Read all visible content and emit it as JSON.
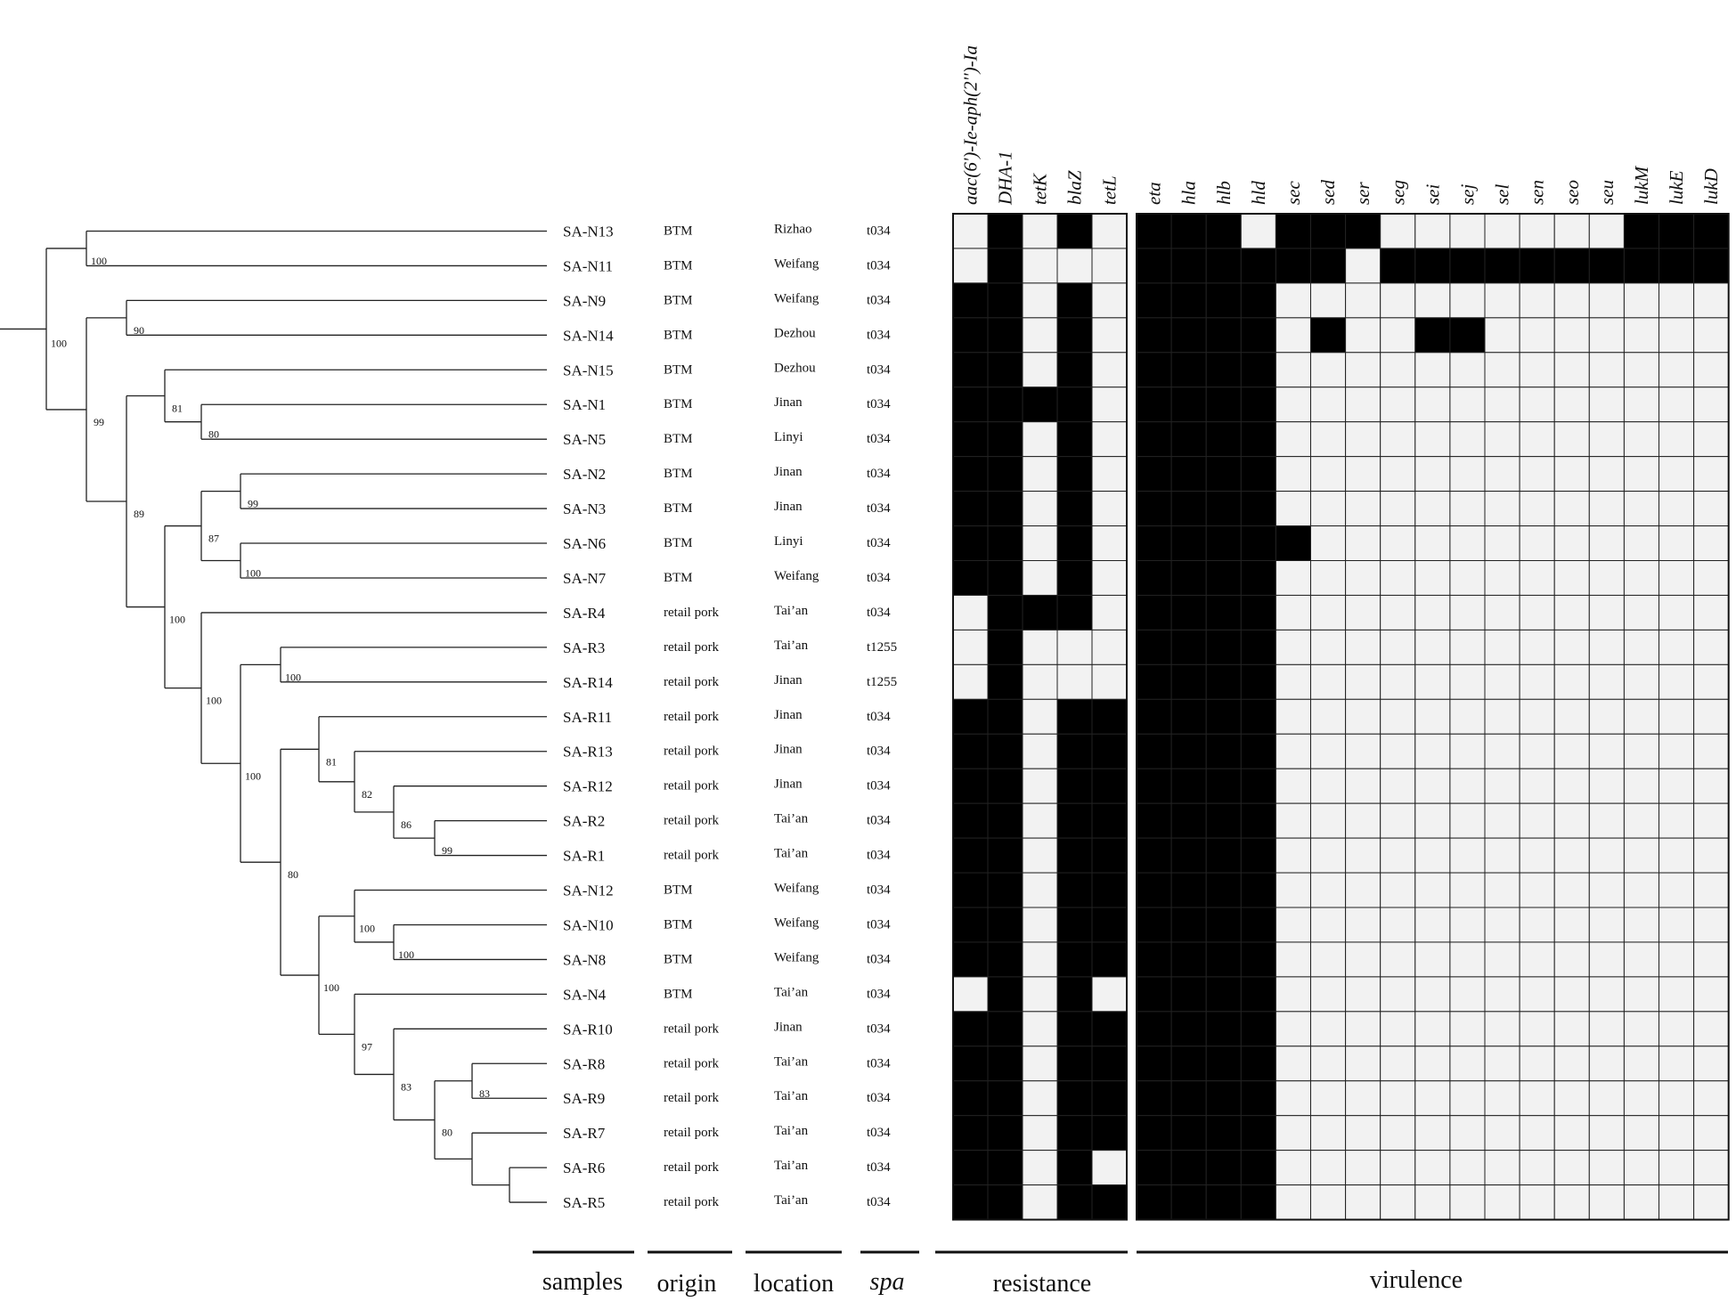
{
  "samples": [
    {
      "id": "SA-N13",
      "origin": "BTM",
      "location": "Rizhao",
      "spa": "t034"
    },
    {
      "id": "SA-N11",
      "origin": "BTM",
      "location": "Weifang",
      "spa": "t034"
    },
    {
      "id": "SA-N9",
      "origin": "BTM",
      "location": "Weifang",
      "spa": "t034"
    },
    {
      "id": "SA-N14",
      "origin": "BTM",
      "location": "Dezhou",
      "spa": "t034"
    },
    {
      "id": "SA-N15",
      "origin": "BTM",
      "location": "Dezhou",
      "spa": "t034"
    },
    {
      "id": "SA-N1",
      "origin": "BTM",
      "location": "Jinan",
      "spa": "t034"
    },
    {
      "id": "SA-N5",
      "origin": "BTM",
      "location": "Linyi",
      "spa": "t034"
    },
    {
      "id": "SA-N2",
      "origin": "BTM",
      "location": "Jinan",
      "spa": "t034"
    },
    {
      "id": "SA-N3",
      "origin": "BTM",
      "location": "Jinan",
      "spa": "t034"
    },
    {
      "id": "SA-N6",
      "origin": "BTM",
      "location": "Linyi",
      "spa": "t034"
    },
    {
      "id": "SA-N7",
      "origin": "BTM",
      "location": "Weifang",
      "spa": "t034"
    },
    {
      "id": "SA-R4",
      "origin": "retail pork",
      "location": "Tai’an",
      "spa": "t034"
    },
    {
      "id": "SA-R3",
      "origin": "retail pork",
      "location": "Tai’an",
      "spa": "t1255"
    },
    {
      "id": "SA-R14",
      "origin": "retail pork",
      "location": "Jinan",
      "spa": "t1255"
    },
    {
      "id": "SA-R11",
      "origin": "retail pork",
      "location": "Jinan",
      "spa": "t034"
    },
    {
      "id": "SA-R13",
      "origin": "retail pork",
      "location": "Jinan",
      "spa": "t034"
    },
    {
      "id": "SA-R12",
      "origin": "retail pork",
      "location": "Jinan",
      "spa": "t034"
    },
    {
      "id": "SA-R2",
      "origin": "retail pork",
      "location": "Tai’an",
      "spa": "t034"
    },
    {
      "id": "SA-R1",
      "origin": "retail pork",
      "location": "Tai’an",
      "spa": "t034"
    },
    {
      "id": "SA-N12",
      "origin": "BTM",
      "location": "Weifang",
      "spa": "t034"
    },
    {
      "id": "SA-N10",
      "origin": "BTM",
      "location": "Weifang",
      "spa": "t034"
    },
    {
      "id": "SA-N8",
      "origin": "BTM",
      "location": "Weifang",
      "spa": "t034"
    },
    {
      "id": "SA-N4",
      "origin": "BTM",
      "location": "Tai’an",
      "spa": "t034"
    },
    {
      "id": "SA-R10",
      "origin": "retail pork",
      "location": "Jinan",
      "spa": "t034"
    },
    {
      "id": "SA-R8",
      "origin": "retail pork",
      "location": "Tai’an",
      "spa": "t034"
    },
    {
      "id": "SA-R9",
      "origin": "retail pork",
      "location": "Tai’an",
      "spa": "t034"
    },
    {
      "id": "SA-R7",
      "origin": "retail pork",
      "location": "Tai’an",
      "spa": "t034"
    },
    {
      "id": "SA-R6",
      "origin": "retail pork",
      "location": "Tai’an",
      "spa": "t034"
    },
    {
      "id": "SA-R5",
      "origin": "retail pork",
      "location": "Tai’an",
      "spa": "t034"
    }
  ],
  "resistance_genes": [
    "aac(6')-Ie-aph(2'')-Ia",
    "DHA-1",
    "tetK",
    "blaZ",
    "tetL"
  ],
  "virulence_genes": [
    "eta",
    "hla",
    "hlb",
    "hld",
    "sec",
    "sed",
    "ser",
    "seg",
    "sei",
    "sej",
    "sel",
    "sen",
    "seo",
    "seu",
    "lukM",
    "lukE",
    "lukD"
  ],
  "resistance_matrix": [
    [
      0,
      1,
      0,
      1,
      0
    ],
    [
      0,
      1,
      0,
      0,
      0
    ],
    [
      1,
      1,
      0,
      1,
      0
    ],
    [
      1,
      1,
      0,
      1,
      0
    ],
    [
      1,
      1,
      0,
      1,
      0
    ],
    [
      1,
      1,
      1,
      1,
      0
    ],
    [
      1,
      1,
      0,
      1,
      0
    ],
    [
      1,
      1,
      0,
      1,
      0
    ],
    [
      1,
      1,
      0,
      1,
      0
    ],
    [
      1,
      1,
      0,
      1,
      0
    ],
    [
      1,
      1,
      0,
      1,
      0
    ],
    [
      0,
      1,
      1,
      1,
      0
    ],
    [
      0,
      1,
      0,
      0,
      0
    ],
    [
      0,
      1,
      0,
      0,
      0
    ],
    [
      1,
      1,
      0,
      1,
      1
    ],
    [
      1,
      1,
      0,
      1,
      1
    ],
    [
      1,
      1,
      0,
      1,
      1
    ],
    [
      1,
      1,
      0,
      1,
      1
    ],
    [
      1,
      1,
      0,
      1,
      1
    ],
    [
      1,
      1,
      0,
      1,
      1
    ],
    [
      1,
      1,
      0,
      1,
      1
    ],
    [
      1,
      1,
      0,
      1,
      1
    ],
    [
      0,
      1,
      0,
      1,
      0
    ],
    [
      1,
      1,
      0,
      1,
      1
    ],
    [
      1,
      1,
      0,
      1,
      1
    ],
    [
      1,
      1,
      0,
      1,
      1
    ],
    [
      1,
      1,
      0,
      1,
      1
    ],
    [
      1,
      1,
      0,
      1,
      0
    ],
    [
      1,
      1,
      0,
      1,
      1
    ]
  ],
  "virulence_matrix": [
    [
      1,
      1,
      1,
      0,
      1,
      1,
      1,
      0,
      0,
      0,
      0,
      0,
      0,
      0,
      1,
      1,
      1
    ],
    [
      1,
      1,
      1,
      1,
      1,
      1,
      0,
      1,
      1,
      1,
      1,
      1,
      1,
      1,
      1,
      1,
      1
    ],
    [
      1,
      1,
      1,
      1,
      0,
      0,
      0,
      0,
      0,
      0,
      0,
      0,
      0,
      0,
      0,
      0,
      0
    ],
    [
      1,
      1,
      1,
      1,
      0,
      1,
      0,
      0,
      1,
      1,
      0,
      0,
      0,
      0,
      0,
      0,
      0
    ],
    [
      1,
      1,
      1,
      1,
      0,
      0,
      0,
      0,
      0,
      0,
      0,
      0,
      0,
      0,
      0,
      0,
      0
    ],
    [
      1,
      1,
      1,
      1,
      0,
      0,
      0,
      0,
      0,
      0,
      0,
      0,
      0,
      0,
      0,
      0,
      0
    ],
    [
      1,
      1,
      1,
      1,
      0,
      0,
      0,
      0,
      0,
      0,
      0,
      0,
      0,
      0,
      0,
      0,
      0
    ],
    [
      1,
      1,
      1,
      1,
      0,
      0,
      0,
      0,
      0,
      0,
      0,
      0,
      0,
      0,
      0,
      0,
      0
    ],
    [
      1,
      1,
      1,
      1,
      0,
      0,
      0,
      0,
      0,
      0,
      0,
      0,
      0,
      0,
      0,
      0,
      0
    ],
    [
      1,
      1,
      1,
      1,
      1,
      0,
      0,
      0,
      0,
      0,
      0,
      0,
      0,
      0,
      0,
      0,
      0
    ],
    [
      1,
      1,
      1,
      1,
      0,
      0,
      0,
      0,
      0,
      0,
      0,
      0,
      0,
      0,
      0,
      0,
      0
    ],
    [
      1,
      1,
      1,
      1,
      0,
      0,
      0,
      0,
      0,
      0,
      0,
      0,
      0,
      0,
      0,
      0,
      0
    ],
    [
      1,
      1,
      1,
      1,
      0,
      0,
      0,
      0,
      0,
      0,
      0,
      0,
      0,
      0,
      0,
      0,
      0
    ],
    [
      1,
      1,
      1,
      1,
      0,
      0,
      0,
      0,
      0,
      0,
      0,
      0,
      0,
      0,
      0,
      0,
      0
    ],
    [
      1,
      1,
      1,
      1,
      0,
      0,
      0,
      0,
      0,
      0,
      0,
      0,
      0,
      0,
      0,
      0,
      0
    ],
    [
      1,
      1,
      1,
      1,
      0,
      0,
      0,
      0,
      0,
      0,
      0,
      0,
      0,
      0,
      0,
      0,
      0
    ],
    [
      1,
      1,
      1,
      1,
      0,
      0,
      0,
      0,
      0,
      0,
      0,
      0,
      0,
      0,
      0,
      0,
      0
    ],
    [
      1,
      1,
      1,
      1,
      0,
      0,
      0,
      0,
      0,
      0,
      0,
      0,
      0,
      0,
      0,
      0,
      0
    ],
    [
      1,
      1,
      1,
      1,
      0,
      0,
      0,
      0,
      0,
      0,
      0,
      0,
      0,
      0,
      0,
      0,
      0
    ],
    [
      1,
      1,
      1,
      1,
      0,
      0,
      0,
      0,
      0,
      0,
      0,
      0,
      0,
      0,
      0,
      0,
      0
    ],
    [
      1,
      1,
      1,
      1,
      0,
      0,
      0,
      0,
      0,
      0,
      0,
      0,
      0,
      0,
      0,
      0,
      0
    ],
    [
      1,
      1,
      1,
      1,
      0,
      0,
      0,
      0,
      0,
      0,
      0,
      0,
      0,
      0,
      0,
      0,
      0
    ],
    [
      1,
      1,
      1,
      1,
      0,
      0,
      0,
      0,
      0,
      0,
      0,
      0,
      0,
      0,
      0,
      0,
      0
    ],
    [
      1,
      1,
      1,
      1,
      0,
      0,
      0,
      0,
      0,
      0,
      0,
      0,
      0,
      0,
      0,
      0,
      0
    ],
    [
      1,
      1,
      1,
      1,
      0,
      0,
      0,
      0,
      0,
      0,
      0,
      0,
      0,
      0,
      0,
      0,
      0
    ],
    [
      1,
      1,
      1,
      1,
      0,
      0,
      0,
      0,
      0,
      0,
      0,
      0,
      0,
      0,
      0,
      0,
      0
    ],
    [
      1,
      1,
      1,
      1,
      0,
      0,
      0,
      0,
      0,
      0,
      0,
      0,
      0,
      0,
      0,
      0,
      0
    ],
    [
      1,
      1,
      1,
      1,
      0,
      0,
      0,
      0,
      0,
      0,
      0,
      0,
      0,
      0,
      0,
      0,
      0
    ],
    [
      1,
      1,
      1,
      1,
      0,
      0,
      0,
      0,
      0,
      0,
      0,
      0,
      0,
      0,
      0,
      0,
      0
    ]
  ],
  "bootstrap": [
    {
      "value": "100",
      "depth": 1
    },
    {
      "value": "100",
      "depth": 2
    },
    {
      "value": "99",
      "depth": 2
    },
    {
      "value": "90",
      "depth": 3
    },
    {
      "value": "89",
      "depth": 4
    },
    {
      "value": "81",
      "depth": 3
    },
    {
      "value": "80",
      "depth": 4
    },
    {
      "value": "100",
      "depth": 5
    },
    {
      "value": "87",
      "depth": 5
    },
    {
      "value": "99",
      "depth": 4
    },
    {
      "value": "100",
      "depth": 5
    },
    {
      "value": "100",
      "depth": 5
    },
    {
      "value": "100",
      "depth": 6
    },
    {
      "value": "100",
      "depth": 7
    },
    {
      "value": "80",
      "depth": 8
    },
    {
      "value": "81",
      "depth": 9
    },
    {
      "value": "82",
      "depth": 10
    },
    {
      "value": "86",
      "depth": 7
    },
    {
      "value": "99",
      "depth": 8
    },
    {
      "value": "100",
      "depth": 9
    },
    {
      "value": "100",
      "depth": 8
    },
    {
      "value": "100",
      "depth": 9
    },
    {
      "value": "97",
      "depth": 10
    },
    {
      "value": "83",
      "depth": 11
    },
    {
      "value": "80",
      "depth": 11
    },
    {
      "value": "83",
      "depth": 12
    }
  ],
  "groups": {
    "samples": "samples",
    "origin": "origin",
    "location": "location",
    "spa": "spa",
    "resistance": "resistance",
    "virulence": "virulence"
  },
  "colors": {
    "present": "#000000",
    "absent": "#f2f2f2",
    "grid": "#222222"
  }
}
